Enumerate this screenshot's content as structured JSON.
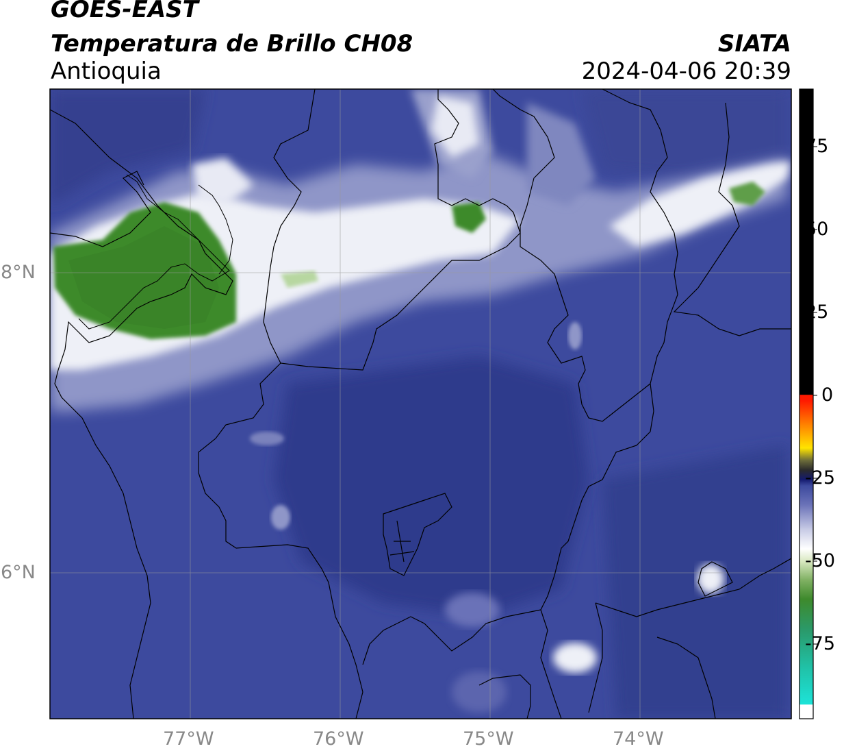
{
  "header": {
    "satellite": "GOES-EAST",
    "product": "Temperatura de Brillo CH08",
    "region": "Antioquia",
    "agency": "SIATA",
    "datetime": "2024-04-06 20:39"
  },
  "map": {
    "lon_ticks": [
      "77°W",
      "76°W",
      "75°W",
      "74°W"
    ],
    "lat_ticks": [
      "8°N",
      "6°N"
    ],
    "colors": {
      "deep_blue": "#2e3a8c",
      "mid_blue": "#3d4a9e",
      "light_blue": "#8f96c8",
      "white": "#f4f4f8",
      "green": "#3e8a2c",
      "light_green": "#a9cf8e"
    }
  },
  "colorbar": {
    "ticks": [
      "75",
      "50",
      "25",
      "0",
      "-25",
      "-50",
      "-75"
    ],
    "colors": [
      "#ffffff",
      "#1de3d8",
      "#2a9a6b",
      "#3e8a2c",
      "#d8e8c0",
      "#ffffff",
      "#3d4a9e",
      "#141a6e",
      "#2b2b2b",
      "#ffe400",
      "#ff7a00",
      "#ff1a00",
      "#000000"
    ]
  }
}
